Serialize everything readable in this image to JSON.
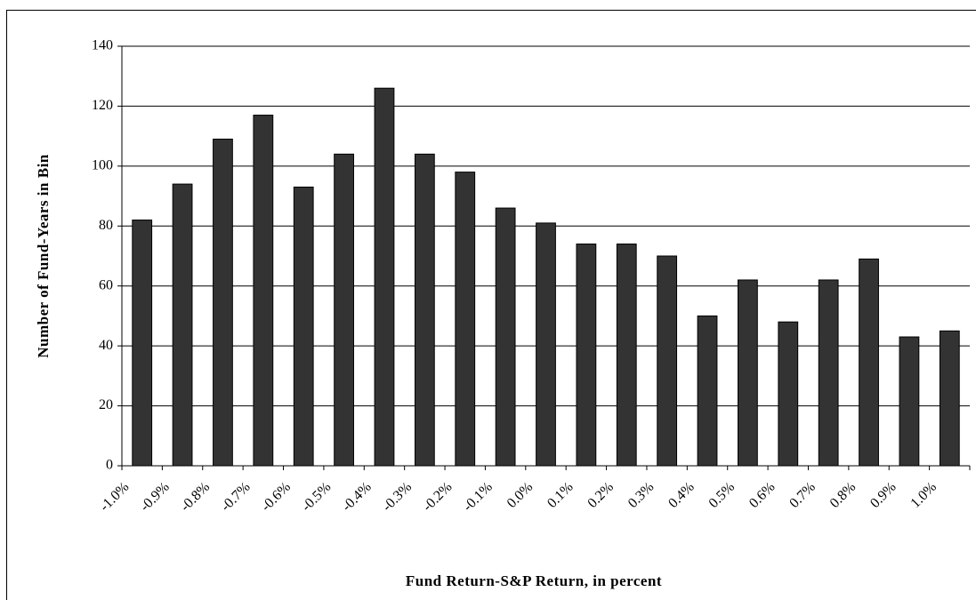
{
  "chart_data": {
    "type": "bar",
    "x_label": "Fund Return-S&P Return, in percent",
    "y_label": "Number of Fund-Years in Bin",
    "categories": [
      "-1.0%",
      "-0.9%",
      "-0.8%",
      "-0.7%",
      "-0.6%",
      "-0.5%",
      "-0.4%",
      "-0.3%",
      "-0.2%",
      "-0.1%",
      "0.0%",
      "0.1%",
      "0.2%",
      "0.3%",
      "0.4%",
      "0.5%",
      "0.6%",
      "0.7%",
      "0.8%",
      "0.9%",
      "1.0%"
    ],
    "values": [
      82,
      94,
      109,
      117,
      93,
      104,
      126,
      104,
      98,
      86,
      81,
      74,
      74,
      70,
      50,
      62,
      48,
      62,
      69,
      43,
      45
    ],
    "color": "#333333",
    "ylim": [
      0,
      140
    ],
    "yticks": [
      0,
      20,
      40,
      60,
      80,
      100,
      120,
      140
    ],
    "grid": true
  }
}
